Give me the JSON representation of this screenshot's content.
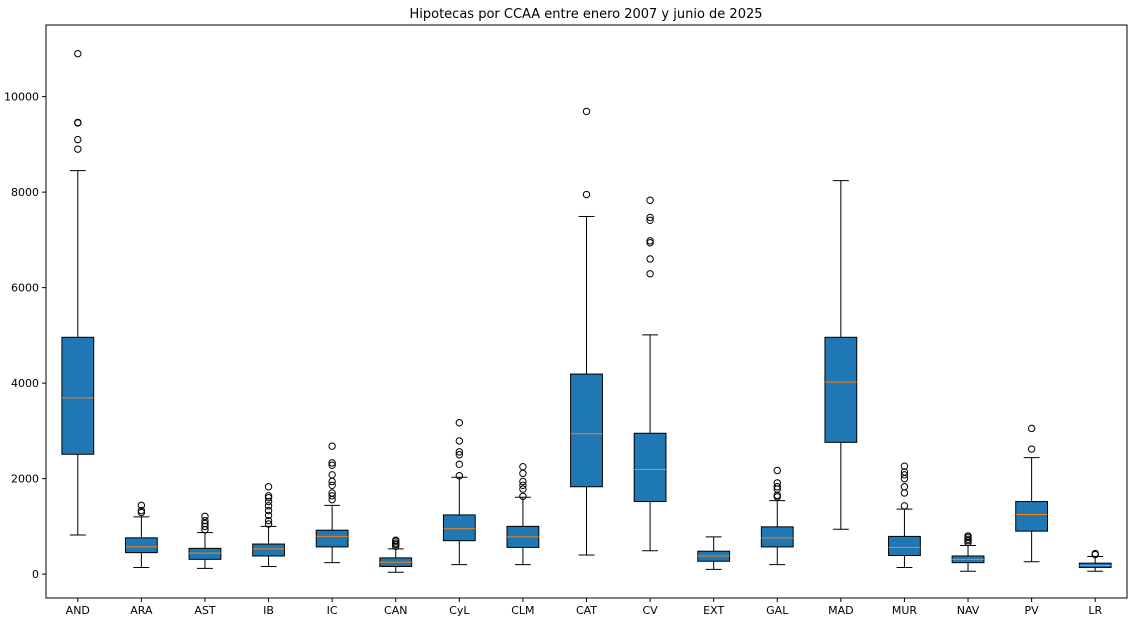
{
  "chart_data": {
    "type": "box",
    "title": "Hipotecas por CCAA entre enero 2007 y junio de 2025",
    "xlabel": "",
    "ylabel": "",
    "ylim": [
      -500,
      11500
    ],
    "yticks": [
      0,
      2000,
      4000,
      6000,
      8000,
      10000
    ],
    "grid": false,
    "colors": {
      "box_fill": "#1f77b4",
      "median": "#ff7f0e",
      "line": "#000000"
    },
    "boxes": [
      {
        "label": "AND",
        "whisker_low": 820,
        "q1": 2510,
        "median": 3690,
        "q3": 4960,
        "whisker_high": 8450,
        "outliers": [
          8900,
          9100,
          9450,
          9460,
          10900
        ]
      },
      {
        "label": "ARA",
        "whisker_low": 140,
        "q1": 450,
        "median": 570,
        "q3": 760,
        "whisker_high": 1200,
        "outliers": [
          1290,
          1330,
          1440
        ]
      },
      {
        "label": "AST",
        "whisker_low": 120,
        "q1": 310,
        "median": 440,
        "q3": 540,
        "whisker_high": 870,
        "outliers": [
          930,
          1000,
          1060,
          1120,
          1210
        ]
      },
      {
        "label": "IB",
        "whisker_low": 160,
        "q1": 380,
        "median": 530,
        "q3": 630,
        "whisker_high": 1000,
        "outliers": [
          1050,
          1120,
          1230,
          1330,
          1430,
          1520,
          1600,
          1640,
          1830
        ]
      },
      {
        "label": "IC",
        "whisker_low": 240,
        "q1": 570,
        "median": 790,
        "q3": 920,
        "whisker_high": 1440,
        "outliers": [
          1560,
          1640,
          1700,
          1860,
          1940,
          2080,
          2280,
          2330,
          2680
        ]
      },
      {
        "label": "CAN",
        "whisker_low": 40,
        "q1": 160,
        "median": 250,
        "q3": 340,
        "whisker_high": 530,
        "outliers": [
          580,
          620,
          650,
          690,
          710
        ]
      },
      {
        "label": "CyL",
        "whisker_low": 200,
        "q1": 700,
        "median": 950,
        "q3": 1240,
        "whisker_high": 2030,
        "outliers": [
          2060,
          2300,
          2500,
          2560,
          2790,
          3170
        ]
      },
      {
        "label": "CLM",
        "whisker_low": 200,
        "q1": 560,
        "median": 780,
        "q3": 1000,
        "whisker_high": 1610,
        "outliers": [
          1630,
          1780,
          1860,
          1940,
          2110,
          2250
        ]
      },
      {
        "label": "CAT",
        "whisker_low": 400,
        "q1": 1830,
        "median": 2940,
        "q3": 4190,
        "whisker_high": 7490,
        "outliers": [
          7950,
          9690
        ]
      },
      {
        "label": "CV",
        "whisker_low": 490,
        "q1": 1520,
        "median": 2190,
        "q3": 2950,
        "whisker_high": 5010,
        "outliers": [
          6290,
          6600,
          6940,
          6980,
          7410,
          7470,
          7830
        ]
      },
      {
        "label": "EXT",
        "whisker_low": 100,
        "q1": 270,
        "median": 380,
        "q3": 480,
        "whisker_high": 780,
        "outliers": []
      },
      {
        "label": "GAL",
        "whisker_low": 200,
        "q1": 570,
        "median": 760,
        "q3": 990,
        "whisker_high": 1540,
        "outliers": [
          1620,
          1650,
          1780,
          1830,
          1910,
          2170
        ]
      },
      {
        "label": "MAD",
        "whisker_low": 940,
        "q1": 2760,
        "median": 4020,
        "q3": 4960,
        "whisker_high": 8240,
        "outliers": []
      },
      {
        "label": "MUR",
        "whisker_low": 140,
        "q1": 390,
        "median": 560,
        "q3": 790,
        "whisker_high": 1360,
        "outliers": [
          1430,
          1700,
          1830,
          2000,
          2080,
          2140,
          2260
        ]
      },
      {
        "label": "NAV",
        "whisker_low": 60,
        "q1": 240,
        "median": 310,
        "q3": 380,
        "whisker_high": 600,
        "outliers": [
          660,
          700,
          730,
          770,
          800
        ]
      },
      {
        "label": "PV",
        "whisker_low": 260,
        "q1": 900,
        "median": 1250,
        "q3": 1520,
        "whisker_high": 2440,
        "outliers": [
          2620,
          3050
        ]
      },
      {
        "label": "LR",
        "whisker_low": 60,
        "q1": 140,
        "median": 180,
        "q3": 230,
        "whisker_high": 370,
        "outliers": [
          410,
          430
        ]
      }
    ]
  }
}
